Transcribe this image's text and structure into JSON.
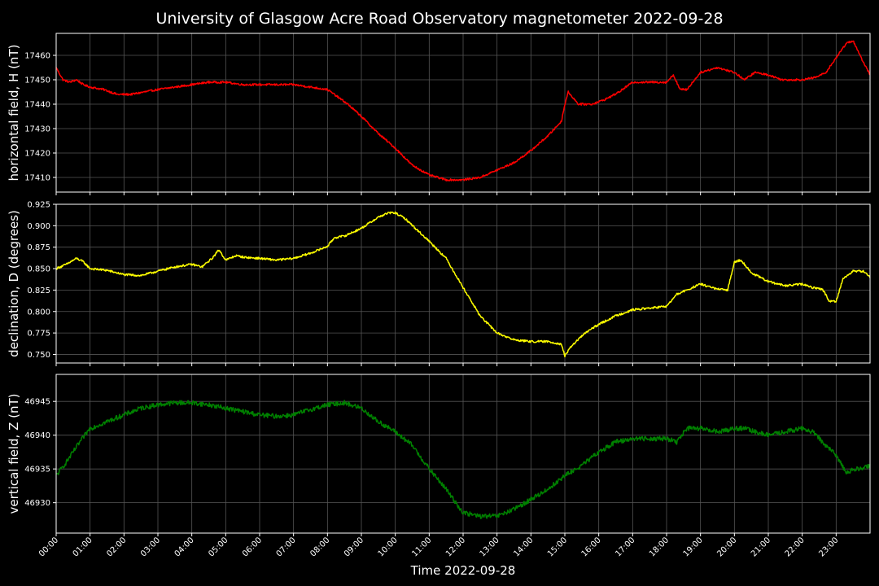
{
  "chart_data": {
    "title": "University of Glasgow Acre Road Observatory magnetometer 2022-09-28",
    "xlabel": "Time 2022-09-28",
    "grid": true,
    "background": "#000000",
    "x_ticks": [
      "00:00",
      "01:00",
      "02:00",
      "03:00",
      "04:00",
      "05:00",
      "06:00",
      "07:00",
      "08:00",
      "09:00",
      "10:00",
      "11:00",
      "12:00",
      "13:00",
      "14:00",
      "15:00",
      "16:00",
      "17:00",
      "18:00",
      "19:00",
      "20:00",
      "21:00",
      "22:00",
      "23:00"
    ],
    "panels": [
      {
        "type": "line",
        "ylabel": "horizontal field, H (nT)",
        "color": "#ff0000",
        "ylim": [
          17404,
          17469
        ],
        "yticks": [
          "17410",
          "17420",
          "17430",
          "17440",
          "17450",
          "17460"
        ],
        "noise": 0.4,
        "x_hours": [
          0,
          0.2,
          0.4,
          0.6,
          0.8,
          1.0,
          1.4,
          1.8,
          2.2,
          2.6,
          3.0,
          3.5,
          4.0,
          4.5,
          5.0,
          5.5,
          6.0,
          6.5,
          7.0,
          7.5,
          8.0,
          8.3,
          8.6,
          9.0,
          9.5,
          10.0,
          10.5,
          11.0,
          11.5,
          12.0,
          12.5,
          13.0,
          13.5,
          14.0,
          14.5,
          14.9,
          15.0,
          15.1,
          15.4,
          15.8,
          16.2,
          16.6,
          17.0,
          17.5,
          18.0,
          18.2,
          18.4,
          18.6,
          19.0,
          19.5,
          20.0,
          20.3,
          20.6,
          21.0,
          21.4,
          22.0,
          22.4,
          22.7,
          22.9,
          23.1,
          23.3,
          23.5,
          23.7,
          24.0
        ],
        "y": [
          17455,
          17450,
          17449,
          17450,
          17448,
          17447,
          17446,
          17444,
          17444,
          17445,
          17446,
          17447,
          17448,
          17449,
          17449,
          17448,
          17448,
          17448,
          17448,
          17447,
          17446,
          17443,
          17440,
          17435,
          17428,
          17422,
          17415,
          17411,
          17409,
          17409,
          17410,
          17413,
          17416,
          17421,
          17427,
          17433,
          17440,
          17445,
          17440,
          17440,
          17442,
          17445,
          17449,
          17449,
          17449,
          17452,
          17446,
          17446,
          17453,
          17455,
          17453,
          17450,
          17453,
          17452,
          17450,
          17450,
          17451,
          17453,
          17457,
          17461,
          17465,
          17466,
          17460,
          17452
        ]
      },
      {
        "type": "line",
        "ylabel": "declination, D (degrees)",
        "color": "#ffff00",
        "ylim": [
          0.74,
          0.925
        ],
        "yticks": [
          "0.750",
          "0.775",
          "0.800",
          "0.825",
          "0.850",
          "0.875",
          "0.900",
          "0.925"
        ],
        "noise": 0.0012,
        "x_hours": [
          0,
          0.3,
          0.6,
          0.8,
          1.0,
          1.5,
          2.0,
          2.5,
          3.0,
          3.5,
          4.0,
          4.3,
          4.6,
          4.8,
          5.0,
          5.3,
          5.6,
          6.0,
          6.5,
          7.0,
          7.5,
          8.0,
          8.2,
          8.5,
          9.0,
          9.5,
          9.8,
          10.0,
          10.3,
          10.7,
          11.0,
          11.5,
          12.0,
          12.5,
          13.0,
          13.5,
          14.0,
          14.5,
          14.9,
          15.0,
          15.2,
          15.6,
          16.0,
          16.5,
          17.0,
          17.5,
          18.0,
          18.3,
          18.6,
          19.0,
          19.5,
          19.8,
          20.0,
          20.2,
          20.5,
          21.0,
          21.5,
          22.0,
          22.3,
          22.6,
          22.8,
          23.0,
          23.2,
          23.5,
          23.8,
          24.0
        ],
        "y": [
          0.85,
          0.855,
          0.862,
          0.858,
          0.85,
          0.848,
          0.843,
          0.842,
          0.847,
          0.852,
          0.855,
          0.852,
          0.862,
          0.872,
          0.86,
          0.865,
          0.863,
          0.862,
          0.86,
          0.862,
          0.868,
          0.876,
          0.886,
          0.888,
          0.897,
          0.91,
          0.915,
          0.915,
          0.908,
          0.893,
          0.882,
          0.862,
          0.828,
          0.795,
          0.775,
          0.767,
          0.765,
          0.765,
          0.762,
          0.748,
          0.76,
          0.775,
          0.785,
          0.795,
          0.802,
          0.804,
          0.806,
          0.82,
          0.825,
          0.832,
          0.826,
          0.825,
          0.858,
          0.86,
          0.845,
          0.835,
          0.83,
          0.832,
          0.828,
          0.826,
          0.812,
          0.812,
          0.838,
          0.847,
          0.847,
          0.84
        ]
      },
      {
        "type": "line",
        "ylabel": "vertical field, Z (nT)",
        "color": "#008000",
        "ylim": [
          46925.5,
          46949
        ],
        "yticks": [
          "46930",
          "46935",
          "46940",
          "46945"
        ],
        "noise": 0.35,
        "x_hours": [
          0,
          0.3,
          0.7,
          1.0,
          1.5,
          2.0,
          2.5,
          3.0,
          3.5,
          4.0,
          4.5,
          5.0,
          5.5,
          6.0,
          6.5,
          7.0,
          7.5,
          8.0,
          8.5,
          9.0,
          9.5,
          10.0,
          10.5,
          11.0,
          11.5,
          12.0,
          12.5,
          13.0,
          13.5,
          14.0,
          14.5,
          15.0,
          15.5,
          16.0,
          16.5,
          17.0,
          17.5,
          18.0,
          18.3,
          18.6,
          19.0,
          19.5,
          20.0,
          20.3,
          20.6,
          21.0,
          21.5,
          22.0,
          22.3,
          22.6,
          23.0,
          23.3,
          23.6,
          24.0
        ],
        "y": [
          46934,
          46936,
          46939,
          46941,
          46942,
          46943,
          46944,
          46944.5,
          46944.8,
          46944.8,
          46944.5,
          46944,
          46943.5,
          46943,
          46942.8,
          46943,
          46943.8,
          46944.5,
          46944.8,
          46944,
          46942,
          46940.5,
          46938.5,
          46935,
          46932,
          46928.5,
          46928,
          46928,
          46929,
          46930.5,
          46932,
          46934,
          46935.5,
          46937.5,
          46939,
          46939.5,
          46939.5,
          46939.5,
          46939,
          46941,
          46941,
          46940.5,
          46941,
          46941,
          46940.5,
          46940,
          46940.5,
          46941,
          46940.5,
          46939,
          46937,
          46934.5,
          46935,
          46935.5
        ]
      }
    ]
  }
}
